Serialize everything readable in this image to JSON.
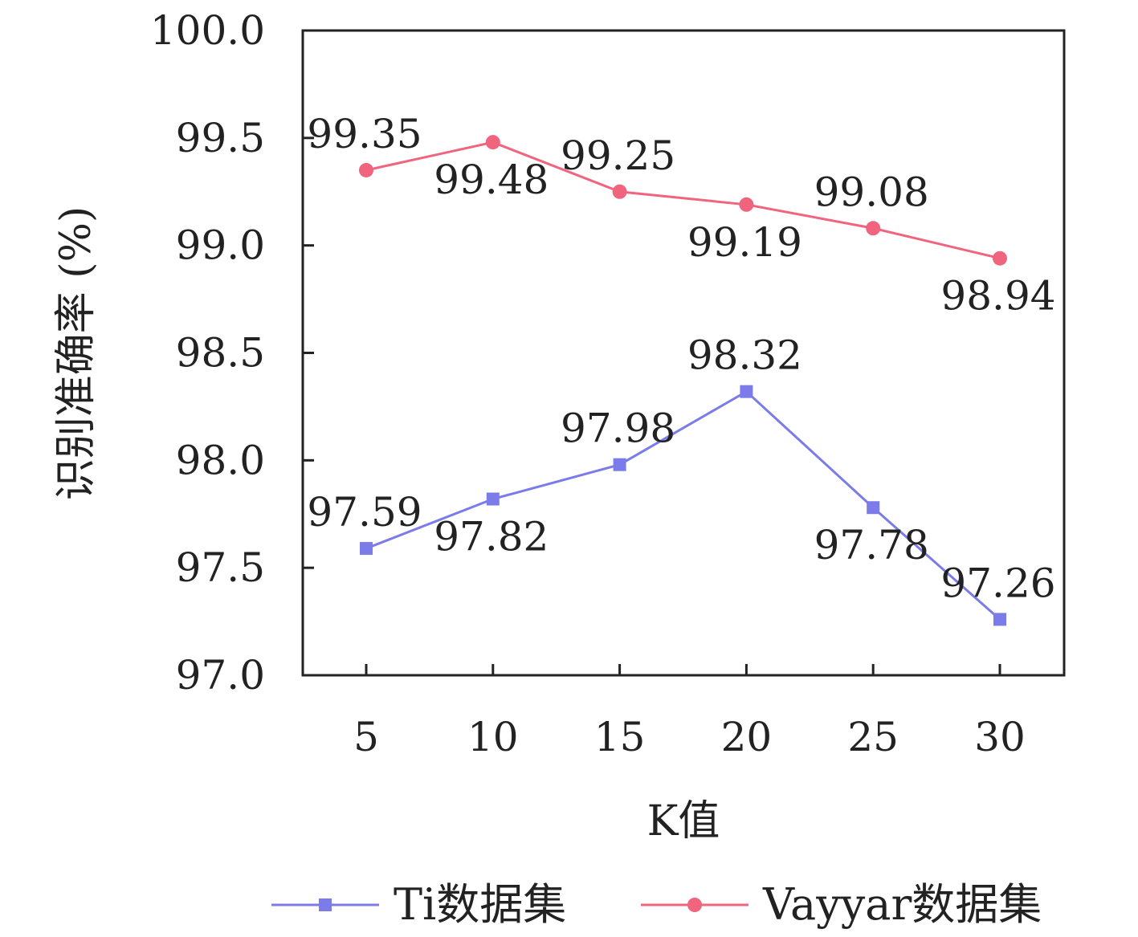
{
  "chart_data": {
    "type": "line",
    "x": [
      5,
      10,
      15,
      20,
      25,
      30
    ],
    "x_tick_labels": [
      "5",
      "10",
      "15",
      "20",
      "25",
      "30"
    ],
    "y_tick_labels": [
      "97.0",
      "97.5",
      "98.0",
      "98.5",
      "99.0",
      "99.5",
      "100.0"
    ],
    "ylim": [
      97.0,
      100.0
    ],
    "xlabel": "K值",
    "ylabel": "识别准确率 (%)",
    "grid": false,
    "legend_position": "bottom",
    "series": [
      {
        "name": "Ti数据集",
        "values": [
          97.59,
          97.82,
          97.98,
          98.32,
          97.78,
          97.26
        ],
        "labels": [
          "97.59",
          "97.82",
          "97.98",
          "98.32",
          "97.78",
          "97.26"
        ],
        "label_side": [
          "above",
          "below",
          "above",
          "above",
          "below",
          "above"
        ],
        "color": "#7b7bea",
        "marker": "square"
      },
      {
        "name": "Vayyar数据集",
        "values": [
          99.35,
          99.48,
          99.25,
          99.19,
          99.08,
          98.94
        ],
        "labels": [
          "99.35",
          "99.48",
          "99.25",
          "99.19",
          "99.08",
          "98.94"
        ],
        "label_side": [
          "above",
          "below",
          "above",
          "below",
          "above",
          "below"
        ],
        "color": "#f0647e",
        "marker": "circle"
      }
    ]
  }
}
